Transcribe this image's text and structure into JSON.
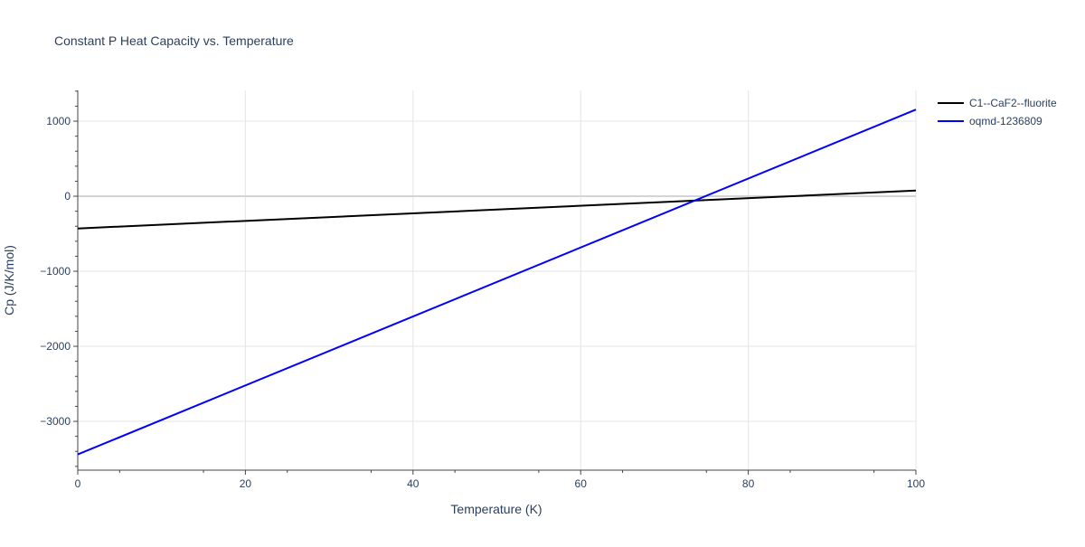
{
  "chart_data": {
    "type": "line",
    "title": "Constant P Heat Capacity vs. Temperature",
    "xlabel": "Temperature (K)",
    "ylabel": "Cp (J/K/mol)",
    "xlim": [
      0,
      100
    ],
    "ylim": [
      -3650,
      1410
    ],
    "x_ticks": [
      0,
      20,
      40,
      60,
      80,
      100
    ],
    "x_tick_labels": [
      "0",
      "20",
      "40",
      "60",
      "80",
      "100"
    ],
    "y_ticks": [
      -3000,
      -2000,
      -1000,
      0,
      1000
    ],
    "y_tick_labels": [
      "−3000",
      "−2000",
      "−1000",
      "0",
      "1000"
    ],
    "grid": true,
    "legend_position": "top-right",
    "series": [
      {
        "name": "C1--CaF2--fluorite",
        "color": "#000000",
        "x": [
          0,
          100
        ],
        "values": [
          -430,
          75
        ]
      },
      {
        "name": "oqmd-1236809",
        "color": "#0000ff",
        "x": [
          0,
          100
        ],
        "values": [
          -3440,
          1155
        ]
      }
    ]
  }
}
